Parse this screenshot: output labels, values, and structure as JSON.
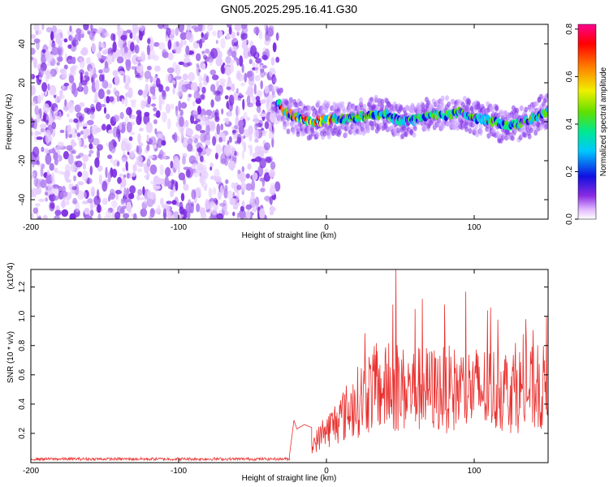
{
  "figure_title": "GN05.2025.295.16.41.G30",
  "chart_data": [
    {
      "type": "heatmap",
      "title": "GN05.2025.295.16.41.G30",
      "xlabel": "Height of straight line (km)",
      "ylabel": "Frequency (Hz)",
      "xlim": [
        -200,
        150
      ],
      "ylim": [
        -50,
        50
      ],
      "x_ticks": [
        -200,
        -100,
        0,
        100
      ],
      "y_ticks": [
        -40,
        -20,
        0,
        20,
        40
      ],
      "colorbar": {
        "label": "Normalized spectral amplitude",
        "range": [
          0,
          0.82
        ],
        "ticks": [
          0.0,
          0.2,
          0.4,
          0.6,
          0.8
        ],
        "colors": [
          "#ffffff",
          "#e0b8ff",
          "#8a2be2",
          "#1010e0",
          "#00c8ff",
          "#00e890",
          "#60e000",
          "#f0f000",
          "#ff8000",
          "#ff0000",
          "#ff0090"
        ]
      },
      "regions": [
        {
          "name": "noise",
          "x_range": [
            -200,
            -33
          ],
          "frequency_range": [
            -50,
            50
          ],
          "amplitude_range": [
            0.0,
            0.12
          ]
        },
        {
          "name": "signal",
          "x_range": [
            -33,
            150
          ],
          "frequency_center": [
            {
              "x": -33,
              "y": 10
            },
            {
              "x": -28,
              "y": 5
            },
            {
              "x": -20,
              "y": 2
            },
            {
              "x": -10,
              "y": 0
            },
            {
              "x": 0,
              "y": 1
            },
            {
              "x": 10,
              "y": 1
            },
            {
              "x": 20,
              "y": 2
            },
            {
              "x": 30,
              "y": 3
            },
            {
              "x": 40,
              "y": 4
            },
            {
              "x": 50,
              "y": 0
            },
            {
              "x": 60,
              "y": 1
            },
            {
              "x": 70,
              "y": 4
            },
            {
              "x": 80,
              "y": 3
            },
            {
              "x": 90,
              "y": 5
            },
            {
              "x": 100,
              "y": 2
            },
            {
              "x": 110,
              "y": 1
            },
            {
              "x": 120,
              "y": -2
            },
            {
              "x": 130,
              "y": -1
            },
            {
              "x": 140,
              "y": 2
            },
            {
              "x": 150,
              "y": 5
            }
          ],
          "peak_amplitude": 0.8
        }
      ]
    },
    {
      "type": "line",
      "xlabel": "Height of straight line (km)",
      "ylabel": "SNR (10 * v/v)",
      "y_multiplier": "(x10^4)",
      "xlim": [
        -200,
        150
      ],
      "ylim": [
        0,
        13200
      ],
      "x_ticks": [
        -200,
        -100,
        0,
        100
      ],
      "y_ticks": [
        2000,
        4000,
        6000,
        8000,
        10000,
        12000
      ],
      "y_tick_labels": [
        "0.2",
        "0.4",
        "0.6",
        "0.8",
        "1.0",
        "1.2"
      ],
      "color": "#e8312f",
      "series": [
        {
          "segment": "baseline",
          "x_range": [
            -200,
            -25
          ],
          "values_range": [
            150,
            350
          ]
        },
        {
          "segment": "onset",
          "x": [
            -25,
            -22,
            -20,
            -15,
            -10
          ],
          "values": [
            500,
            2900,
            2300,
            2600,
            2400
          ]
        },
        {
          "segment": "active",
          "x_range": [
            -10,
            150
          ],
          "values_range": [
            400,
            13200
          ],
          "peaks": [
            {
              "x": 47,
              "y": 13200
            },
            {
              "x": 45,
              "y": 10800
            },
            {
              "x": 60,
              "y": 10500
            },
            {
              "x": 65,
              "y": 11200
            },
            {
              "x": 80,
              "y": 10800
            },
            {
              "x": 135,
              "y": 9800
            },
            {
              "x": 149,
              "y": 10000
            }
          ]
        }
      ]
    }
  ]
}
